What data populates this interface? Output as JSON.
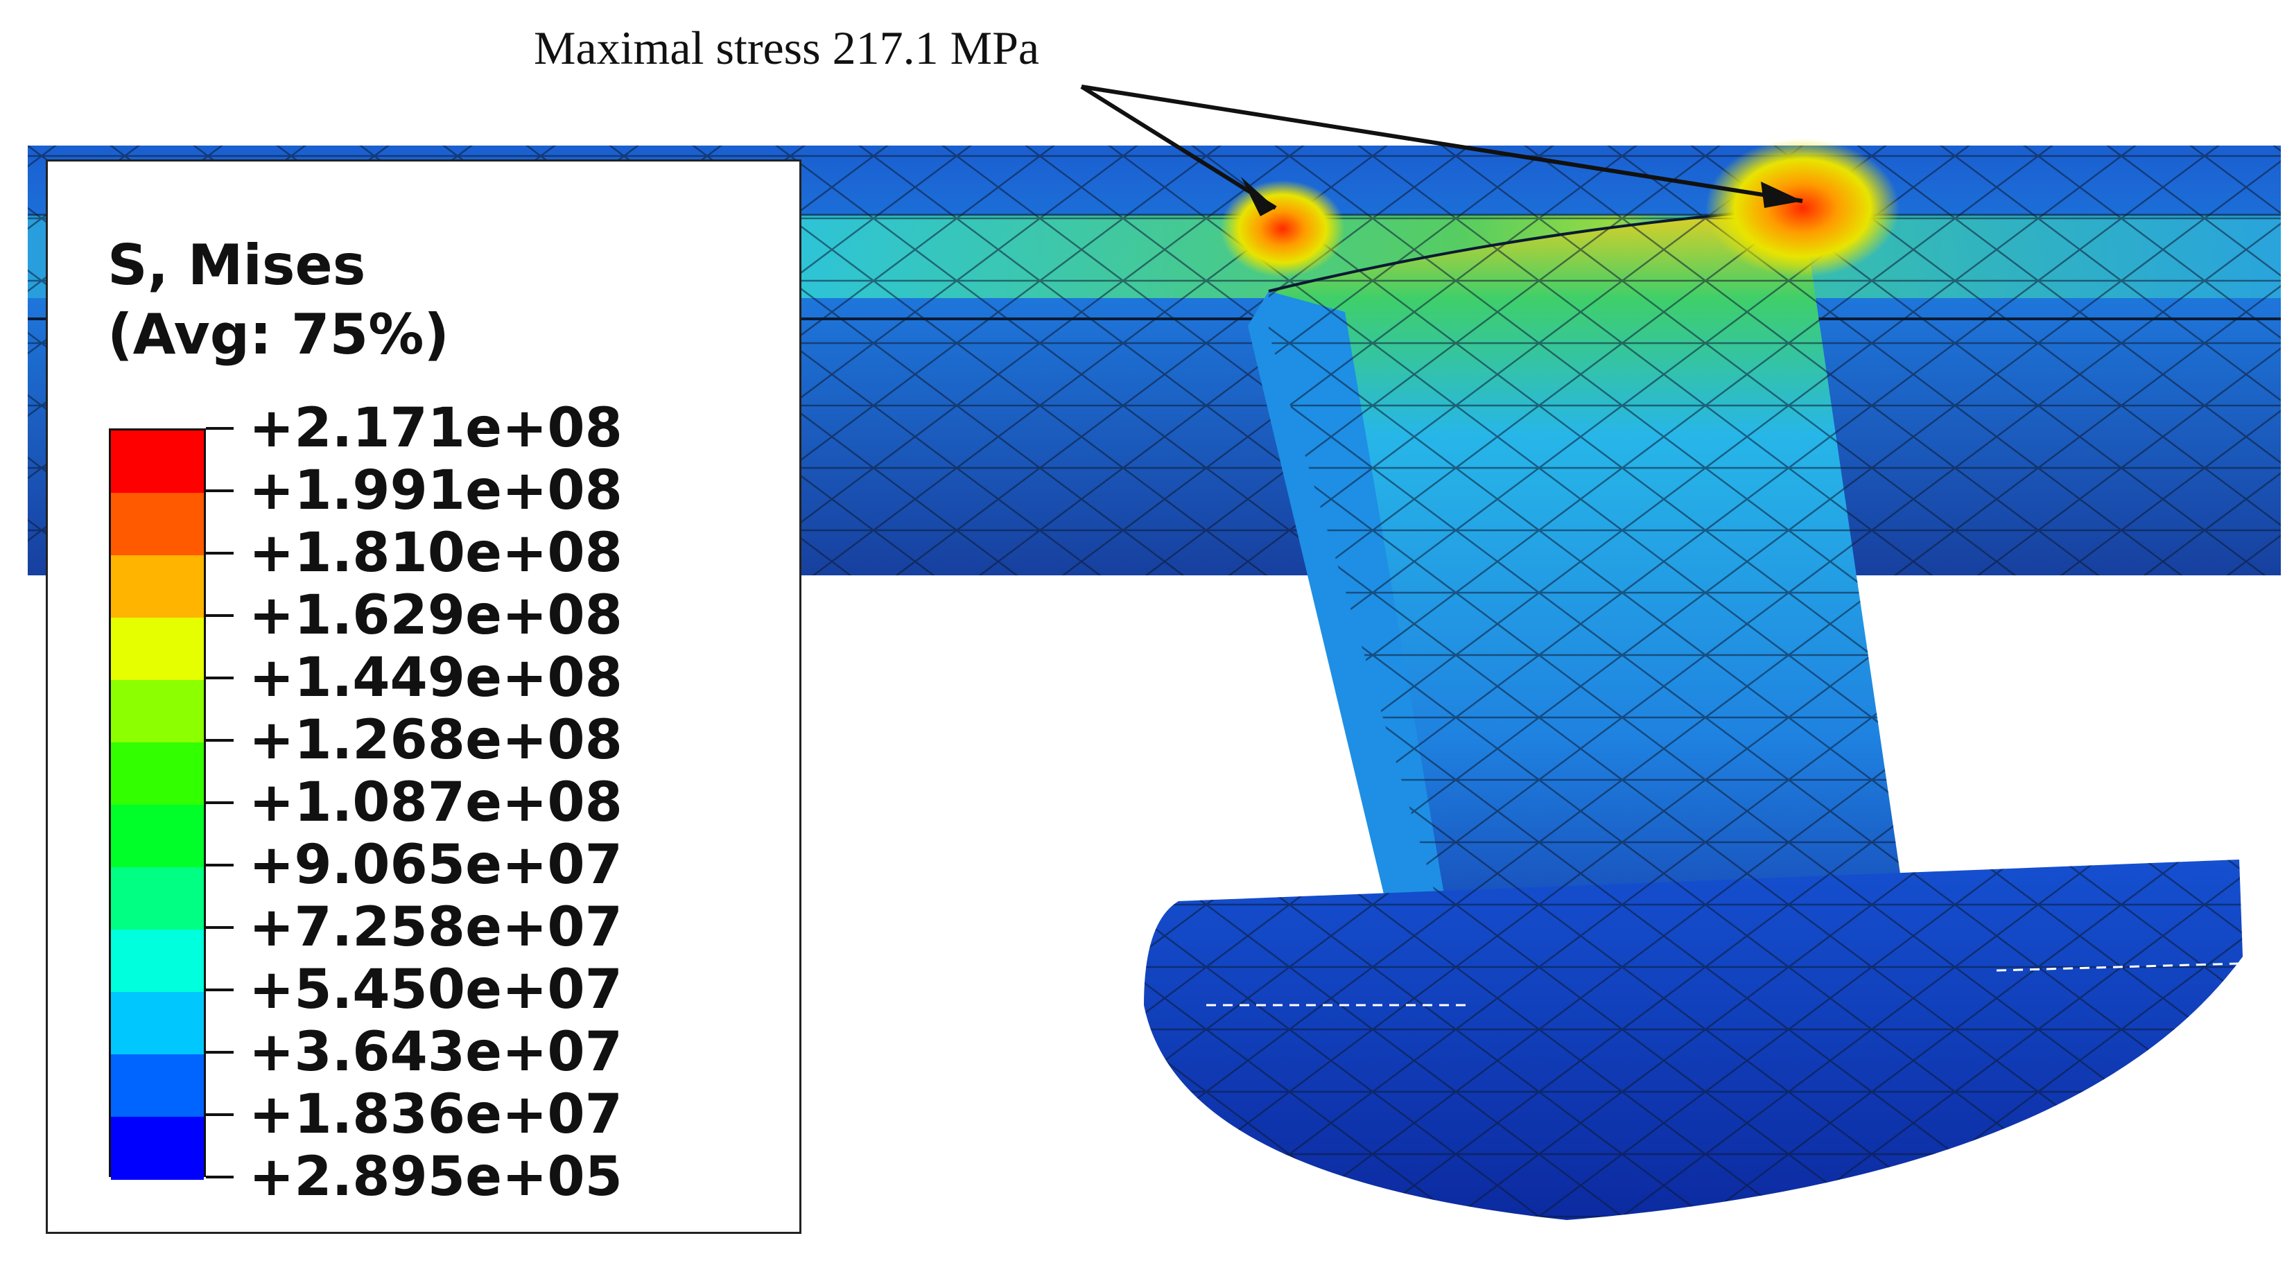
{
  "annotation": {
    "text": "Maximal stress 217.1 MPa"
  },
  "legend": {
    "title_line1": "S, Mises",
    "title_line2": "(Avg: 75%)",
    "levels": [
      {
        "label": "+2.171e+08",
        "color": "#ff0000"
      },
      {
        "label": "+1.991e+08",
        "color": "#ff5a00"
      },
      {
        "label": "+1.810e+08",
        "color": "#ffb400"
      },
      {
        "label": "+1.629e+08",
        "color": "#e6ff00"
      },
      {
        "label": "+1.449e+08",
        "color": "#8cff00"
      },
      {
        "label": "+1.268e+08",
        "color": "#32ff00"
      },
      {
        "label": "+1.087e+08",
        "color": "#00ff28"
      },
      {
        "label": "+9.065e+07",
        "color": "#00ff82"
      },
      {
        "label": "+7.258e+07",
        "color": "#00ffdc"
      },
      {
        "label": "+5.450e+07",
        "color": "#00c8ff"
      },
      {
        "label": "+3.643e+07",
        "color": "#0064ff"
      },
      {
        "label": "+1.836e+07",
        "color": "#0000ff"
      },
      {
        "label": "+2.895e+05",
        "color": "#0000ff"
      }
    ]
  },
  "colors": {
    "plate_dark": "#1a3fb0",
    "plate_mid": "#1f6fd6",
    "plate_light": "#29a8e8",
    "green_band": "#3cd060",
    "hot_red": "#ff2a00",
    "hot_yellow": "#f5e400",
    "mesh_line": "#0b1a33"
  }
}
